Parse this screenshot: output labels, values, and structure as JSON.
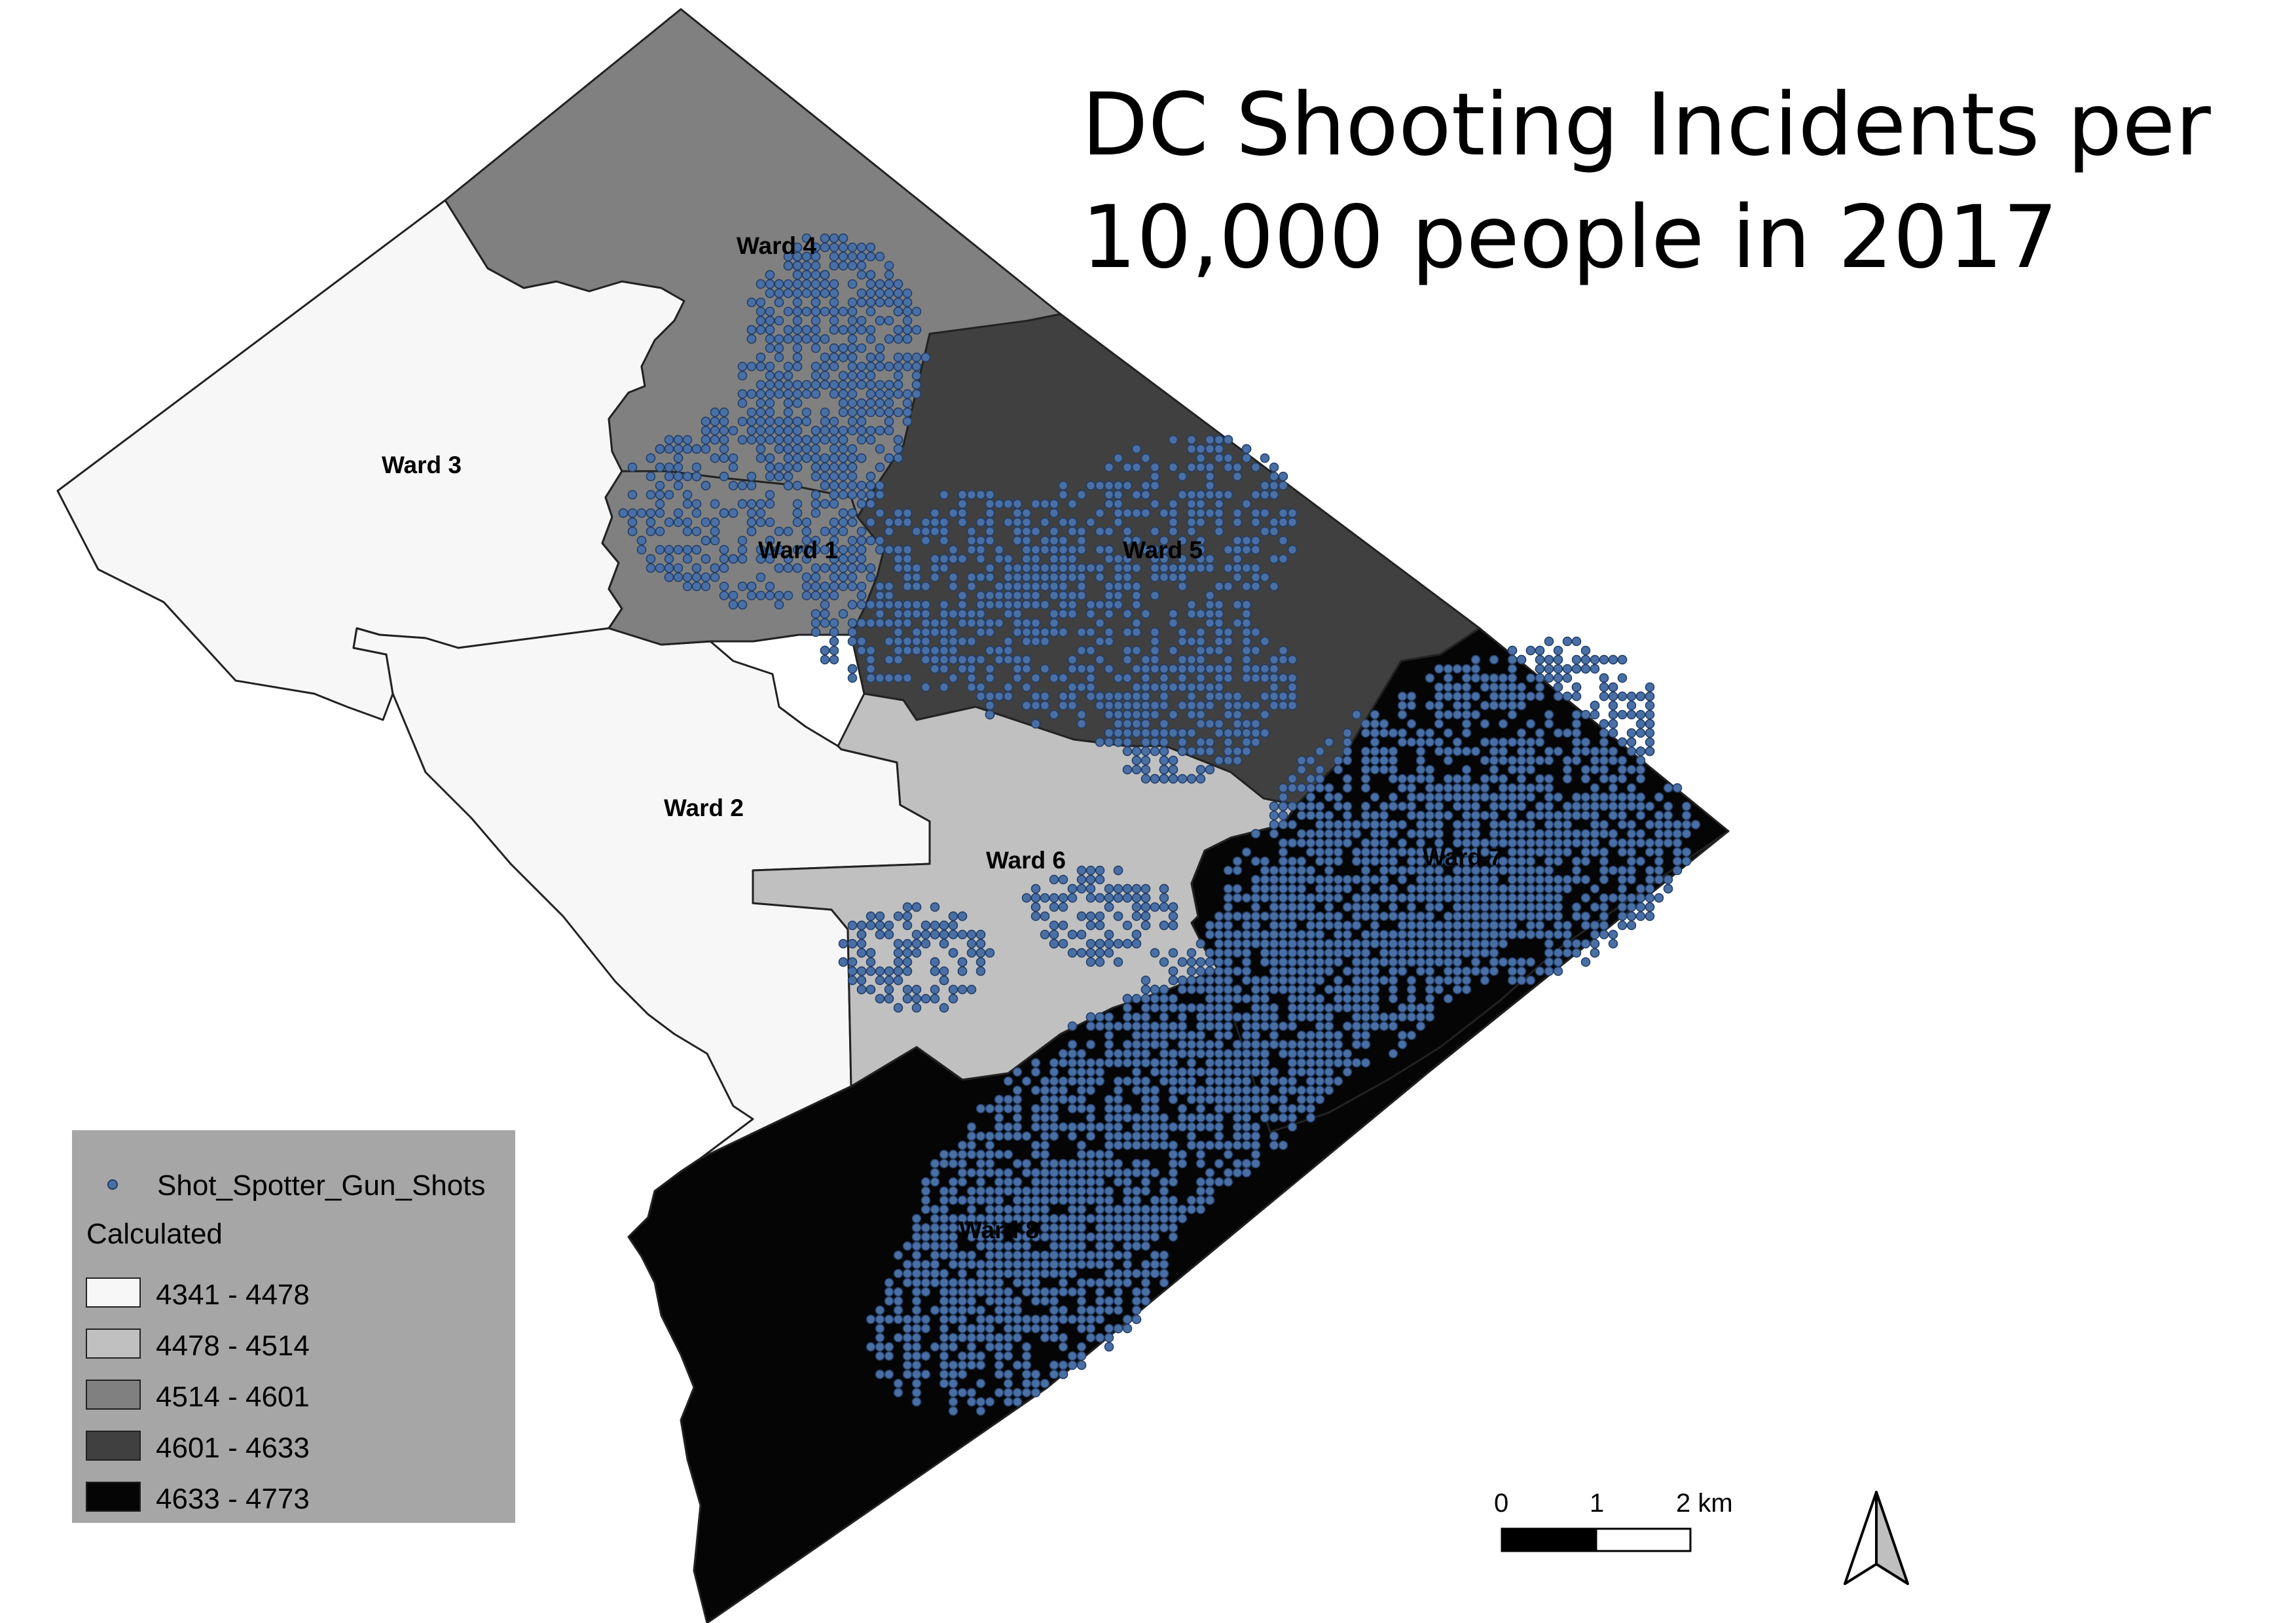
{
  "title": {
    "line1": "DC Shooting Incidents per",
    "line2": "10,000 people in 2017"
  },
  "wards": [
    {
      "id": "ward-1",
      "label": "Ward 1",
      "class_index": 2
    },
    {
      "id": "ward-2",
      "label": "Ward 2",
      "class_index": 0
    },
    {
      "id": "ward-3",
      "label": "Ward 3",
      "class_index": 0
    },
    {
      "id": "ward-4",
      "label": "Ward 4",
      "class_index": 2
    },
    {
      "id": "ward-5",
      "label": "Ward 5",
      "class_index": 3
    },
    {
      "id": "ward-6",
      "label": "Ward 6",
      "class_index": 1
    },
    {
      "id": "ward-7",
      "label": "Ward 7",
      "class_index": 4
    },
    {
      "id": "ward-8",
      "label": "Ward 8",
      "class_index": 4
    }
  ],
  "legend": {
    "point_layer": "Shot_Spotter_Gun_Shots",
    "field_title": "Calculated",
    "classes": [
      {
        "label": "4341 - 4478",
        "color": "#f7f7f7"
      },
      {
        "label": "4478 - 4514",
        "color": "#c0c0c0"
      },
      {
        "label": "4514 - 4601",
        "color": "#808080"
      },
      {
        "label": "4601 - 4633",
        "color": "#404040"
      },
      {
        "label": "4633 - 4773",
        "color": "#050505"
      }
    ]
  },
  "scale_bar": {
    "tick_0": "0",
    "tick_1": "1",
    "tick_2": "2 km"
  },
  "colors": {
    "point_fill": "#4a6fa5",
    "point_stroke": "#1f3d66",
    "legend_background": "#a6a6a6"
  }
}
